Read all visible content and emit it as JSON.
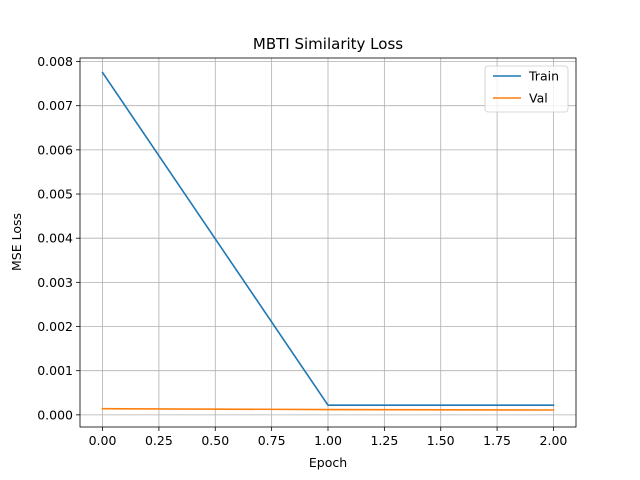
{
  "chart_data": {
    "type": "line",
    "title": "MBTI Similarity Loss",
    "xlabel": "Epoch",
    "ylabel": "MSE Loss",
    "x": [
      0,
      1,
      2
    ],
    "series": [
      {
        "name": "Train",
        "color": "#1f77b4",
        "values": [
          0.00775,
          0.00022,
          0.00022
        ]
      },
      {
        "name": "Val",
        "color": "#ff7f0e",
        "values": [
          0.00014,
          0.00012,
          0.00011
        ]
      }
    ],
    "xlim": [
      -0.1,
      2.1
    ],
    "ylim": [
      -0.000275,
      0.00808
    ],
    "xticks": [
      0,
      0.25,
      0.5,
      0.75,
      1,
      1.25,
      1.5,
      1.75,
      2
    ],
    "xtick_labels": [
      "0.00",
      "0.25",
      "0.50",
      "0.75",
      "1.00",
      "1.25",
      "1.50",
      "1.75",
      "2.00"
    ],
    "yticks": [
      0,
      0.001,
      0.002,
      0.003,
      0.004,
      0.005,
      0.006,
      0.007,
      0.008
    ],
    "ytick_labels": [
      "0.000",
      "0.001",
      "0.002",
      "0.003",
      "0.004",
      "0.005",
      "0.006",
      "0.007",
      "0.008"
    ],
    "grid": true,
    "legend_position": "upper right"
  }
}
